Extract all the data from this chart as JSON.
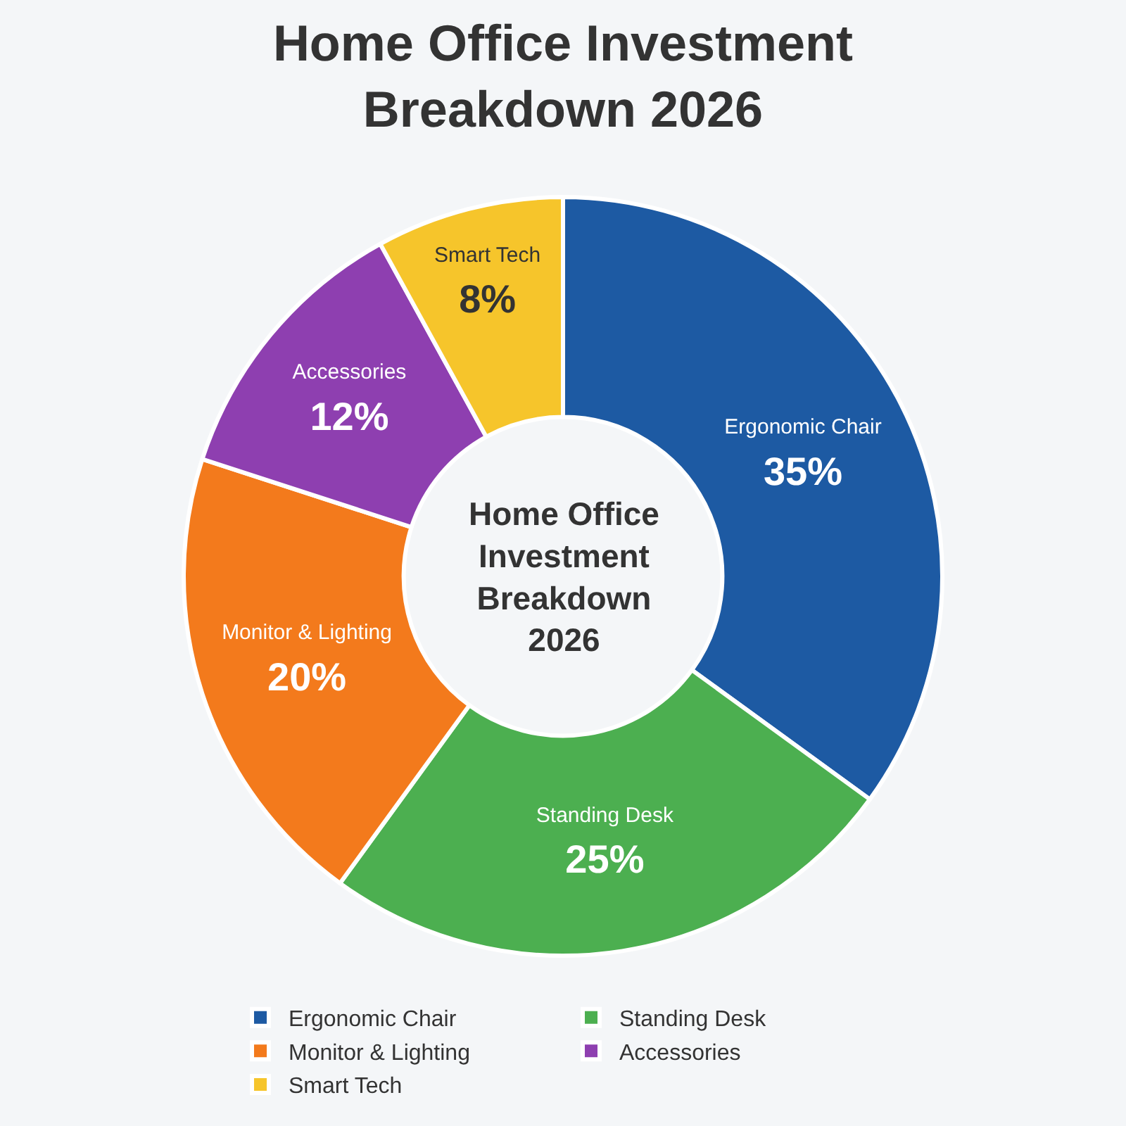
{
  "chart_data": {
    "type": "donut",
    "title": "Home Office Investment Breakdown 2026",
    "categories": [
      "Ergonomic Chair",
      "Standing Desk",
      "Monitor & Lighting",
      "Accessories",
      "Smart Tech"
    ],
    "values": [
      35,
      25,
      20,
      12,
      8
    ],
    "value_labels": [
      "35%",
      "25%",
      "20%",
      "12%",
      "8%"
    ],
    "colors": [
      "#1d5aa3",
      "#4caf50",
      "#f37a1c",
      "#8e3fb0",
      "#f6c52b"
    ],
    "annotations": [
      "Home Office Investment Breakdown 2026"
    ],
    "legend": "bottom"
  }
}
